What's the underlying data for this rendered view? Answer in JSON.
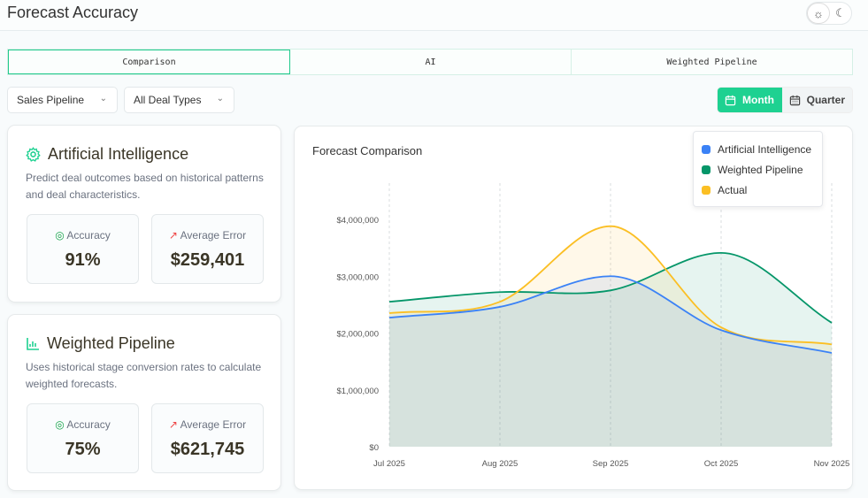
{
  "header": {
    "title": "Forecast Accuracy",
    "theme": {
      "light_icon": "sun-icon",
      "dark_icon": "moon-icon"
    }
  },
  "tabs": [
    {
      "label": "Comparison",
      "active": true
    },
    {
      "label": "AI",
      "active": false
    },
    {
      "label": "Weighted Pipeline",
      "active": false
    }
  ],
  "filters": {
    "pipeline": "Sales Pipeline",
    "deal_type": "All Deal Types"
  },
  "period": {
    "month": "Month",
    "quarter": "Quarter",
    "selected": "Month"
  },
  "methods": [
    {
      "title": "Artificial Intelligence",
      "icon": "gear-icon",
      "description": "Predict deal outcomes based on historical patterns and deal characteristics.",
      "accuracy_label": "Accuracy",
      "accuracy": "91%",
      "error_label": "Average Error",
      "error": "$259,401"
    },
    {
      "title": "Weighted Pipeline",
      "icon": "bar-chart-icon",
      "description": "Uses historical stage conversion rates to calculate weighted forecasts.",
      "accuracy_label": "Accuracy",
      "accuracy": "75%",
      "error_label": "Average Error",
      "error": "$621,745"
    }
  ],
  "colors": {
    "accent": "#1ed191",
    "ai": "#3b82f6",
    "weighted": "#059669",
    "actual": "#fbbf24"
  },
  "chart_data": {
    "type": "area",
    "title": "Forecast Comparison",
    "categories": [
      "Jul 2025",
      "Aug 2025",
      "Sep 2025",
      "Oct 2025",
      "Nov 2025"
    ],
    "ylim": [
      0,
      4000000
    ],
    "yticks": [
      0,
      1000000,
      2000000,
      3000000,
      4000000
    ],
    "ytick_labels": [
      "$0",
      "$1,000,000",
      "$2,000,000",
      "$3,000,000",
      "$4,000,000"
    ],
    "grid": "vertical dashed",
    "legend": "top-right",
    "series": [
      {
        "name": "Artificial Intelligence",
        "color": "#3b82f6",
        "values": [
          2270000,
          2460000,
          3000000,
          2050000,
          1650000
        ]
      },
      {
        "name": "Weighted Pipeline",
        "color": "#059669",
        "values": [
          2550000,
          2720000,
          2750000,
          3410000,
          2180000
        ]
      },
      {
        "name": "Actual",
        "color": "#fbbf24",
        "values": [
          2350000,
          2550000,
          3880000,
          2100000,
          1800000
        ]
      }
    ]
  }
}
